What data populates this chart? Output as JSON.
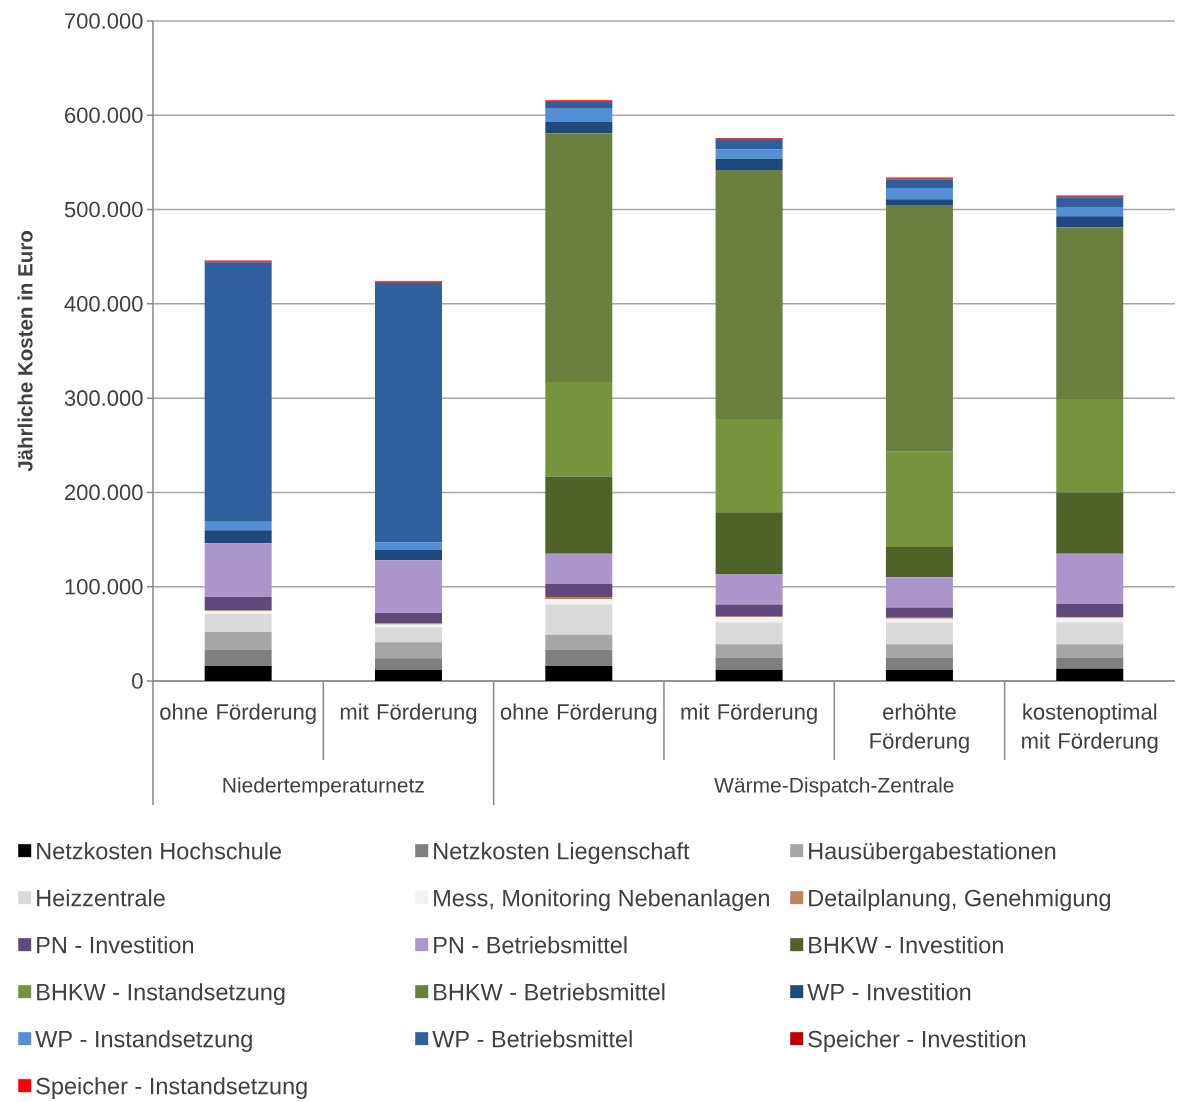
{
  "chart_data": {
    "type": "bar",
    "stacked": true,
    "ylabel": "Jährliche Kosten in Euro",
    "categories": [
      "ohne Förderung",
      "mit Förderung",
      "ohne Förderung",
      "mit Förderung",
      "erhöhte Förderung",
      "kostenoptimal mit Förderung"
    ],
    "annotations": [
      "Niedertemperaturnetz",
      "Wärme-Dispatch-Zentrale"
    ],
    "ylim": [
      0,
      700000
    ],
    "yticks": [
      0,
      {
        "value": 100000,
        "label": "100.000"
      },
      {
        "value": 200000,
        "label": "200.000"
      },
      {
        "value": 300000,
        "label": "300.000"
      },
      {
        "value": 400000,
        "label": "400.000"
      },
      {
        "value": 500000,
        "label": "500.000"
      },
      {
        "value": 600000,
        "label": "600.000"
      },
      {
        "value": 700000,
        "label": "700.000"
      }
    ],
    "grid": "y",
    "legend": "bottom",
    "series": [
      {
        "name": "Netzkosten Hochschule",
        "color": "#000000",
        "values": [
          16000,
          12000,
          16000,
          12000,
          12000,
          13000
        ]
      },
      {
        "name": "Netzkosten Liegenschaft",
        "color": "#7f7f7f",
        "values": [
          17000,
          12000,
          17000,
          13000,
          13000,
          12000
        ]
      },
      {
        "name": "Hausübergabestationen",
        "color": "#a6a6a6",
        "values": [
          19000,
          17000,
          16000,
          14000,
          14000,
          14000
        ]
      },
      {
        "name": "Heizzentrale",
        "color": "#d9d9d9",
        "values": [
          19000,
          16000,
          32000,
          23000,
          23000,
          23000
        ]
      },
      {
        "name": "Mess, Monitoring Nebenanlagen",
        "color": "#f2f2f2",
        "values": [
          3000,
          3000,
          6000,
          6000,
          4000,
          5000
        ]
      },
      {
        "name": "Detailplanung, Genehmigung",
        "color": "#c0845a",
        "values": [
          1000,
          1000,
          2000,
          1000,
          1000,
          1000
        ]
      },
      {
        "name": "PN - Investition",
        "color": "#604a7b",
        "values": [
          14000,
          11000,
          14000,
          12000,
          11000,
          14000
        ]
      },
      {
        "name": "PN - Betriebsmittel",
        "color": "#ab96cc",
        "values": [
          57000,
          56000,
          32000,
          32000,
          32000,
          53000
        ]
      },
      {
        "name": "BHKW - Investition",
        "color": "#4f6228",
        "values": [
          0,
          0,
          82000,
          66000,
          32000,
          65000
        ]
      },
      {
        "name": "BHKW - Instandsetzung",
        "color": "#77933c",
        "values": [
          0,
          0,
          100000,
          99000,
          101000,
          99000
        ]
      },
      {
        "name": "BHKW - Betriebsmittel",
        "color": "#6b7f3e",
        "values": [
          0,
          0,
          264000,
          264000,
          261000,
          182000
        ]
      },
      {
        "name": "WP - Investition",
        "color": "#1f497d",
        "values": [
          14000,
          11000,
          12000,
          12000,
          7000,
          12000
        ]
      },
      {
        "name": "WP - Instandsetzung",
        "color": "#558ed5",
        "values": [
          9000,
          8000,
          14000,
          10000,
          12000,
          9000
        ]
      },
      {
        "name": "WP - Betriebsmittel",
        "color": "#2f5f9e",
        "values": [
          275000,
          275000,
          7000,
          10000,
          9000,
          11000
        ]
      },
      {
        "name": "Speicher - Investition",
        "color": "#c00000",
        "values": [
          1000,
          1000,
          1000,
          1000,
          1000,
          1000
        ]
      },
      {
        "name": "Speicher - Instandsetzung",
        "color": "#ff0000",
        "values": [
          1000,
          1000,
          1000,
          1000,
          1000,
          1000
        ]
      }
    ]
  }
}
